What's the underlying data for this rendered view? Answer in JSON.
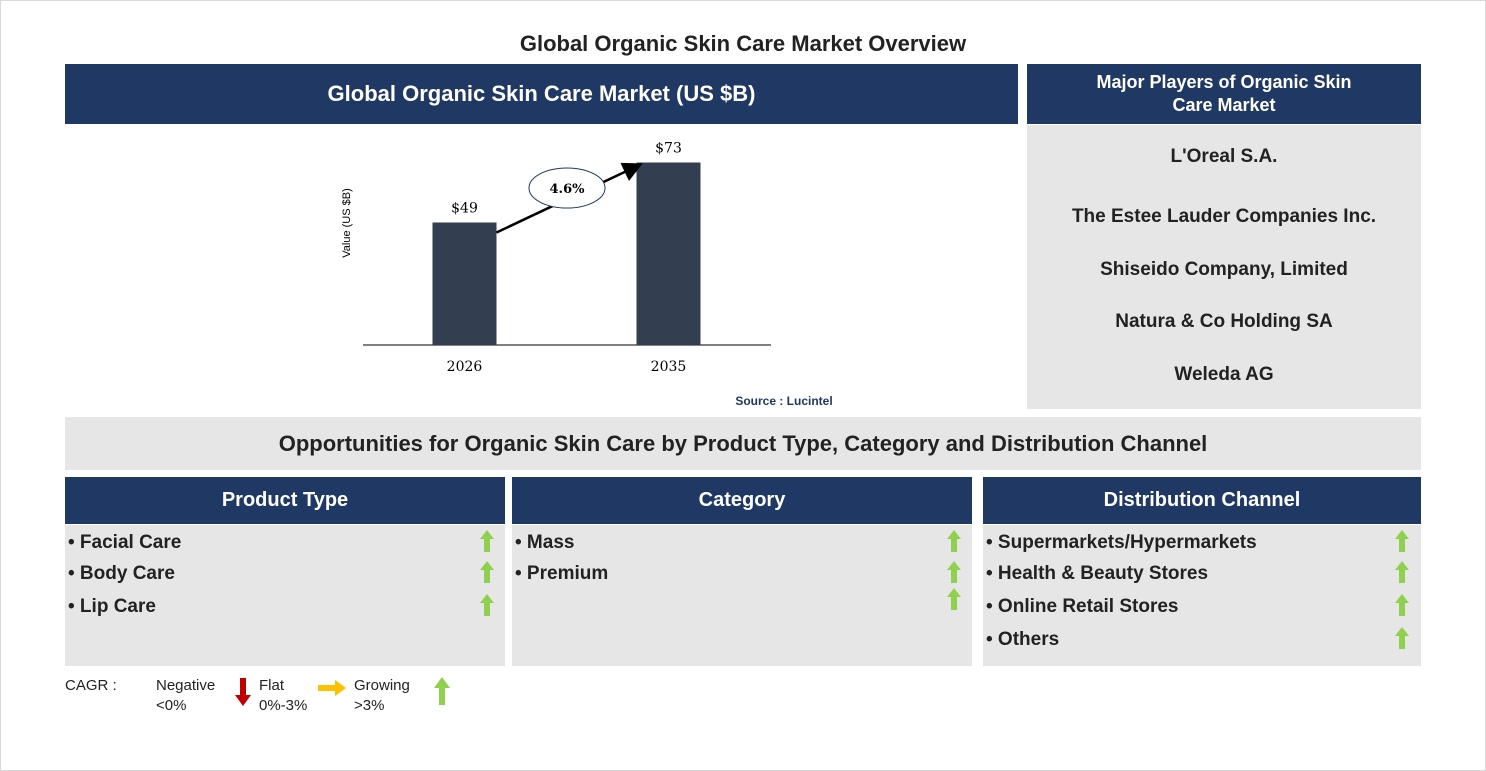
{
  "title": "Global Organic Skin Care Market Overview",
  "chart_data": {
    "type": "bar",
    "title": "Global Organic Skin Care Market (US $B)",
    "y_label": "Value (US $B)",
    "categories": [
      "2026",
      "2035"
    ],
    "values": [
      49,
      73
    ],
    "value_labels": [
      "$49",
      "$73"
    ],
    "color": "#333f50",
    "ylim": [
      0,
      80
    ],
    "annotation": "4.6%",
    "source": "Source : Lucintel"
  },
  "players": {
    "title": "Major Players of Organic Skin Care Market",
    "items": [
      "L'Oreal S.A.",
      "The Estee Lauder Companies Inc.",
      "Shiseido Company, Limited",
      "Natura & Co Holding SA",
      "Weleda AG"
    ]
  },
  "opportunities": {
    "title": "Opportunities for Organic Skin Care by Product Type, Category and Distribution Channel",
    "columns": [
      {
        "title": "Product Type",
        "items": [
          "• Facial Care",
          "• Body Care",
          "• Lip Care"
        ]
      },
      {
        "title": "Category",
        "items": [
          "• Mass",
          "• Premium"
        ]
      },
      {
        "title": "Distribution Channel",
        "items": [
          "• Supermarkets/Hypermarkets",
          "• Health & Beauty Stores",
          "• Online Retail Stores",
          "• Others"
        ]
      }
    ]
  },
  "legend": {
    "label": "CAGR :",
    "items": [
      {
        "label": "Negative",
        "range": "<0%"
      },
      {
        "label": "Flat",
        "range": "0%-3%"
      },
      {
        "label": "Growing",
        "range": ">3%"
      }
    ]
  }
}
